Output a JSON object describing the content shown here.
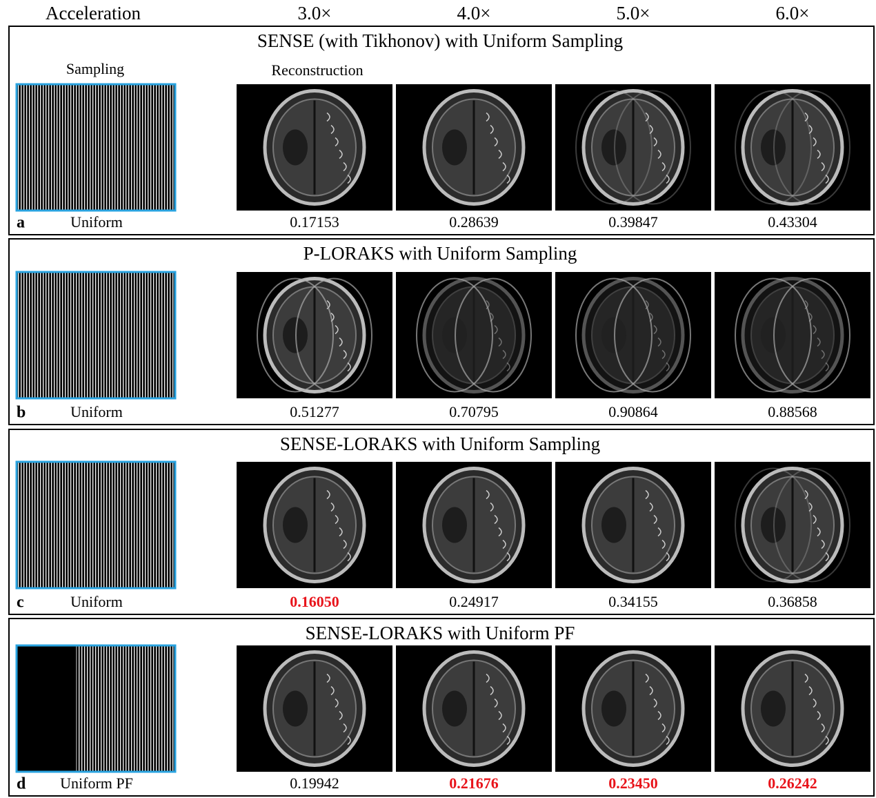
{
  "header": {
    "label": "Acceleration",
    "accelerations": [
      "3.0×",
      "4.0×",
      "5.0×",
      "6.0×"
    ]
  },
  "column_labels": {
    "sampling": "Sampling",
    "reconstruction": "Reconstruction"
  },
  "panels": [
    {
      "letter": "a",
      "title": "SENSE (with Tikhonov) with Uniform Sampling",
      "sampling": "Uniform",
      "values": [
        "0.17153",
        "0.28639",
        "0.39847",
        "0.43304"
      ],
      "highlighted": [
        false,
        false,
        false,
        false
      ]
    },
    {
      "letter": "b",
      "title": "P-LORAKS with Uniform Sampling",
      "sampling": "Uniform",
      "values": [
        "0.51277",
        "0.70795",
        "0.90864",
        "0.88568"
      ],
      "highlighted": [
        false,
        false,
        false,
        false
      ]
    },
    {
      "letter": "c",
      "title": "SENSE-LORAKS with Uniform Sampling",
      "sampling": "Uniform",
      "values": [
        "0.16050",
        "0.24917",
        "0.34155",
        "0.36858"
      ],
      "highlighted": [
        true,
        false,
        false,
        false
      ]
    },
    {
      "letter": "d",
      "title": "SENSE-LORAKS with Uniform PF",
      "sampling": "Uniform PF",
      "values": [
        "0.19942",
        "0.21676",
        "0.23450",
        "0.26242"
      ],
      "highlighted": [
        false,
        true,
        true,
        true
      ]
    }
  ]
}
